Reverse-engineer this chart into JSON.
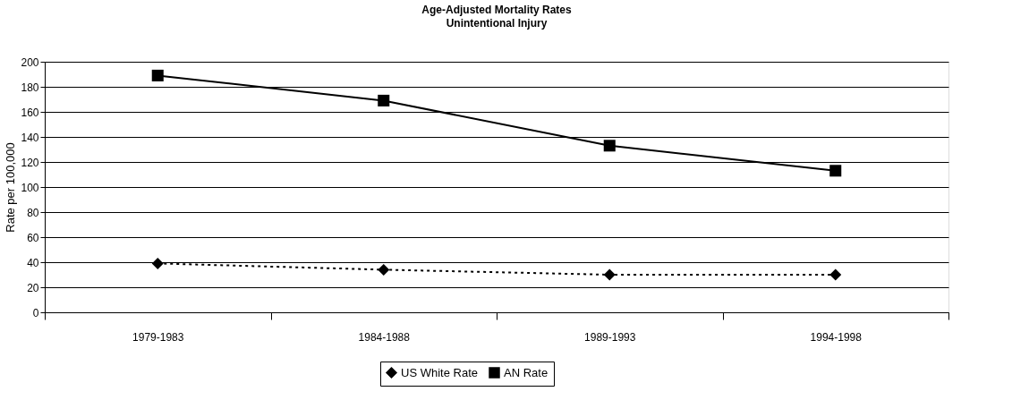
{
  "chart_data": {
    "type": "line",
    "title": "Age-Adjusted Mortality Rates",
    "subtitle": "Unintentional Injury",
    "ylabel": "Rate per 100,000",
    "categories": [
      "1979-1983",
      "1984-1988",
      "1989-1993",
      "1994-1998"
    ],
    "series": [
      {
        "name": "US White Rate",
        "color": "#000000",
        "marker": "diamond",
        "line_style": "dotted",
        "values": [
          39,
          34,
          30,
          30
        ]
      },
      {
        "name": "AN Rate",
        "color": "#000000",
        "marker": "square",
        "line_style": "solid",
        "values": [
          189,
          169,
          133,
          113
        ]
      }
    ],
    "ylim": [
      0,
      200
    ],
    "yticks": [
      0,
      20,
      40,
      60,
      80,
      100,
      120,
      140,
      160,
      180,
      200
    ],
    "grid": "y",
    "legend": "bottom"
  }
}
